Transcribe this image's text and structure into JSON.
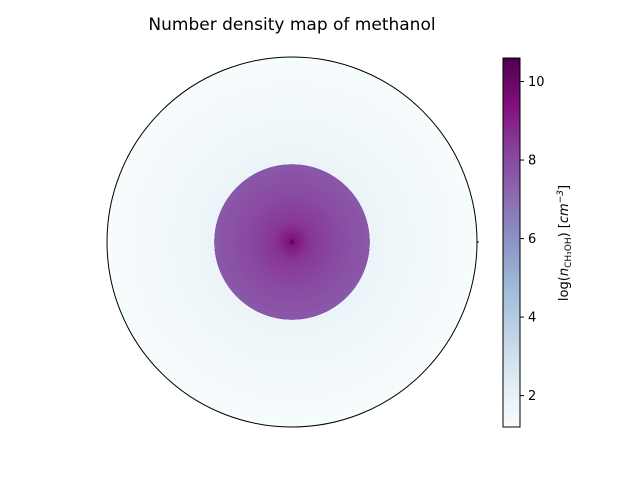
{
  "chart_data": {
    "type": "heatmap",
    "title": "Number density map of methanol",
    "projection": "polar",
    "quantity_label": {
      "prefix": "log(",
      "symbol": "n",
      "subscript": "CH₃OH",
      "suffix": ")",
      "units_prefix": "[",
      "units_base": "cm",
      "units_exp": "−3",
      "units_suffix": "]"
    },
    "colorbar": {
      "colormap": "BuPu",
      "range": [
        1.2,
        10.6
      ],
      "ticks": [
        2,
        4,
        6,
        8,
        10
      ],
      "tick_labels": [
        "2",
        "4",
        "6",
        "8",
        "10"
      ],
      "color_stops": [
        "#f7fcfd",
        "#e0ecf4",
        "#bfd3e6",
        "#9ebcda",
        "#8c96c6",
        "#8c6bb1",
        "#88419d",
        "#810f7c",
        "#4d004b"
      ]
    },
    "radial_profile": {
      "r_fraction": [
        0.0,
        0.02,
        0.1,
        0.25,
        0.42,
        0.421,
        0.6,
        0.8,
        1.0
      ],
      "log_density": [
        10.6,
        9.3,
        8.5,
        8.0,
        7.6,
        1.8,
        1.6,
        1.4,
        1.2
      ]
    },
    "inner_region_radius_fraction": 0.42
  }
}
